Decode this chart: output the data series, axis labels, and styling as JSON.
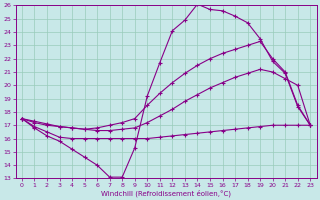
{
  "xlabel": "Windchill (Refroidissement éolien,°C)",
  "xlim": [
    -0.5,
    23.5
  ],
  "ylim": [
    13,
    26
  ],
  "xticks": [
    0,
    1,
    2,
    3,
    4,
    5,
    6,
    7,
    8,
    9,
    10,
    11,
    12,
    13,
    14,
    15,
    16,
    17,
    18,
    19,
    20,
    21,
    22,
    23
  ],
  "yticks": [
    13,
    14,
    15,
    16,
    17,
    18,
    19,
    20,
    21,
    22,
    23,
    24,
    25,
    26
  ],
  "bg_color": "#c8e8e8",
  "line_color": "#880088",
  "grid_color": "#99ccbb",
  "lines": [
    {
      "x": [
        0,
        1,
        2,
        3,
        4,
        5,
        6,
        7,
        8,
        9,
        10,
        11,
        12,
        13,
        14,
        15,
        16,
        17,
        18,
        19,
        20,
        21,
        22,
        23
      ],
      "y": [
        17.5,
        16.8,
        16.2,
        15.8,
        15.2,
        14.6,
        14.0,
        13.1,
        13.1,
        15.3,
        19.2,
        21.7,
        24.1,
        24.9,
        26.1,
        25.7,
        25.6,
        25.2,
        24.7,
        23.5,
        21.8,
        20.9,
        18.4,
        17.0
      ]
    },
    {
      "x": [
        0,
        1,
        2,
        3,
        4,
        5,
        6,
        7,
        8,
        9,
        10,
        11,
        12,
        13,
        14,
        15,
        16,
        17,
        18,
        19,
        20,
        21,
        22,
        23
      ],
      "y": [
        17.5,
        17.3,
        17.1,
        16.9,
        16.8,
        16.7,
        16.8,
        17.0,
        17.2,
        17.5,
        18.5,
        19.4,
        20.2,
        20.9,
        21.5,
        22.0,
        22.4,
        22.7,
        23.0,
        23.3,
        22.0,
        21.0,
        18.5,
        17.0
      ]
    },
    {
      "x": [
        0,
        1,
        2,
        3,
        4,
        5,
        6,
        7,
        8,
        9,
        10,
        11,
        12,
        13,
        14,
        15,
        16,
        17,
        18,
        19,
        20,
        21,
        22,
        23
      ],
      "y": [
        17.5,
        17.2,
        17.0,
        16.9,
        16.8,
        16.7,
        16.6,
        16.6,
        16.7,
        16.8,
        17.2,
        17.7,
        18.2,
        18.8,
        19.3,
        19.8,
        20.2,
        20.6,
        20.9,
        21.2,
        21.0,
        20.5,
        20.0,
        17.0
      ]
    },
    {
      "x": [
        0,
        1,
        2,
        3,
        4,
        5,
        6,
        7,
        8,
        9,
        10,
        11,
        12,
        13,
        14,
        15,
        16,
        17,
        18,
        19,
        20,
        21,
        22,
        23
      ],
      "y": [
        17.5,
        16.9,
        16.5,
        16.1,
        16.0,
        16.0,
        16.0,
        16.0,
        16.0,
        16.0,
        16.0,
        16.1,
        16.2,
        16.3,
        16.4,
        16.5,
        16.6,
        16.7,
        16.8,
        16.9,
        17.0,
        17.0,
        17.0,
        17.0
      ]
    }
  ]
}
